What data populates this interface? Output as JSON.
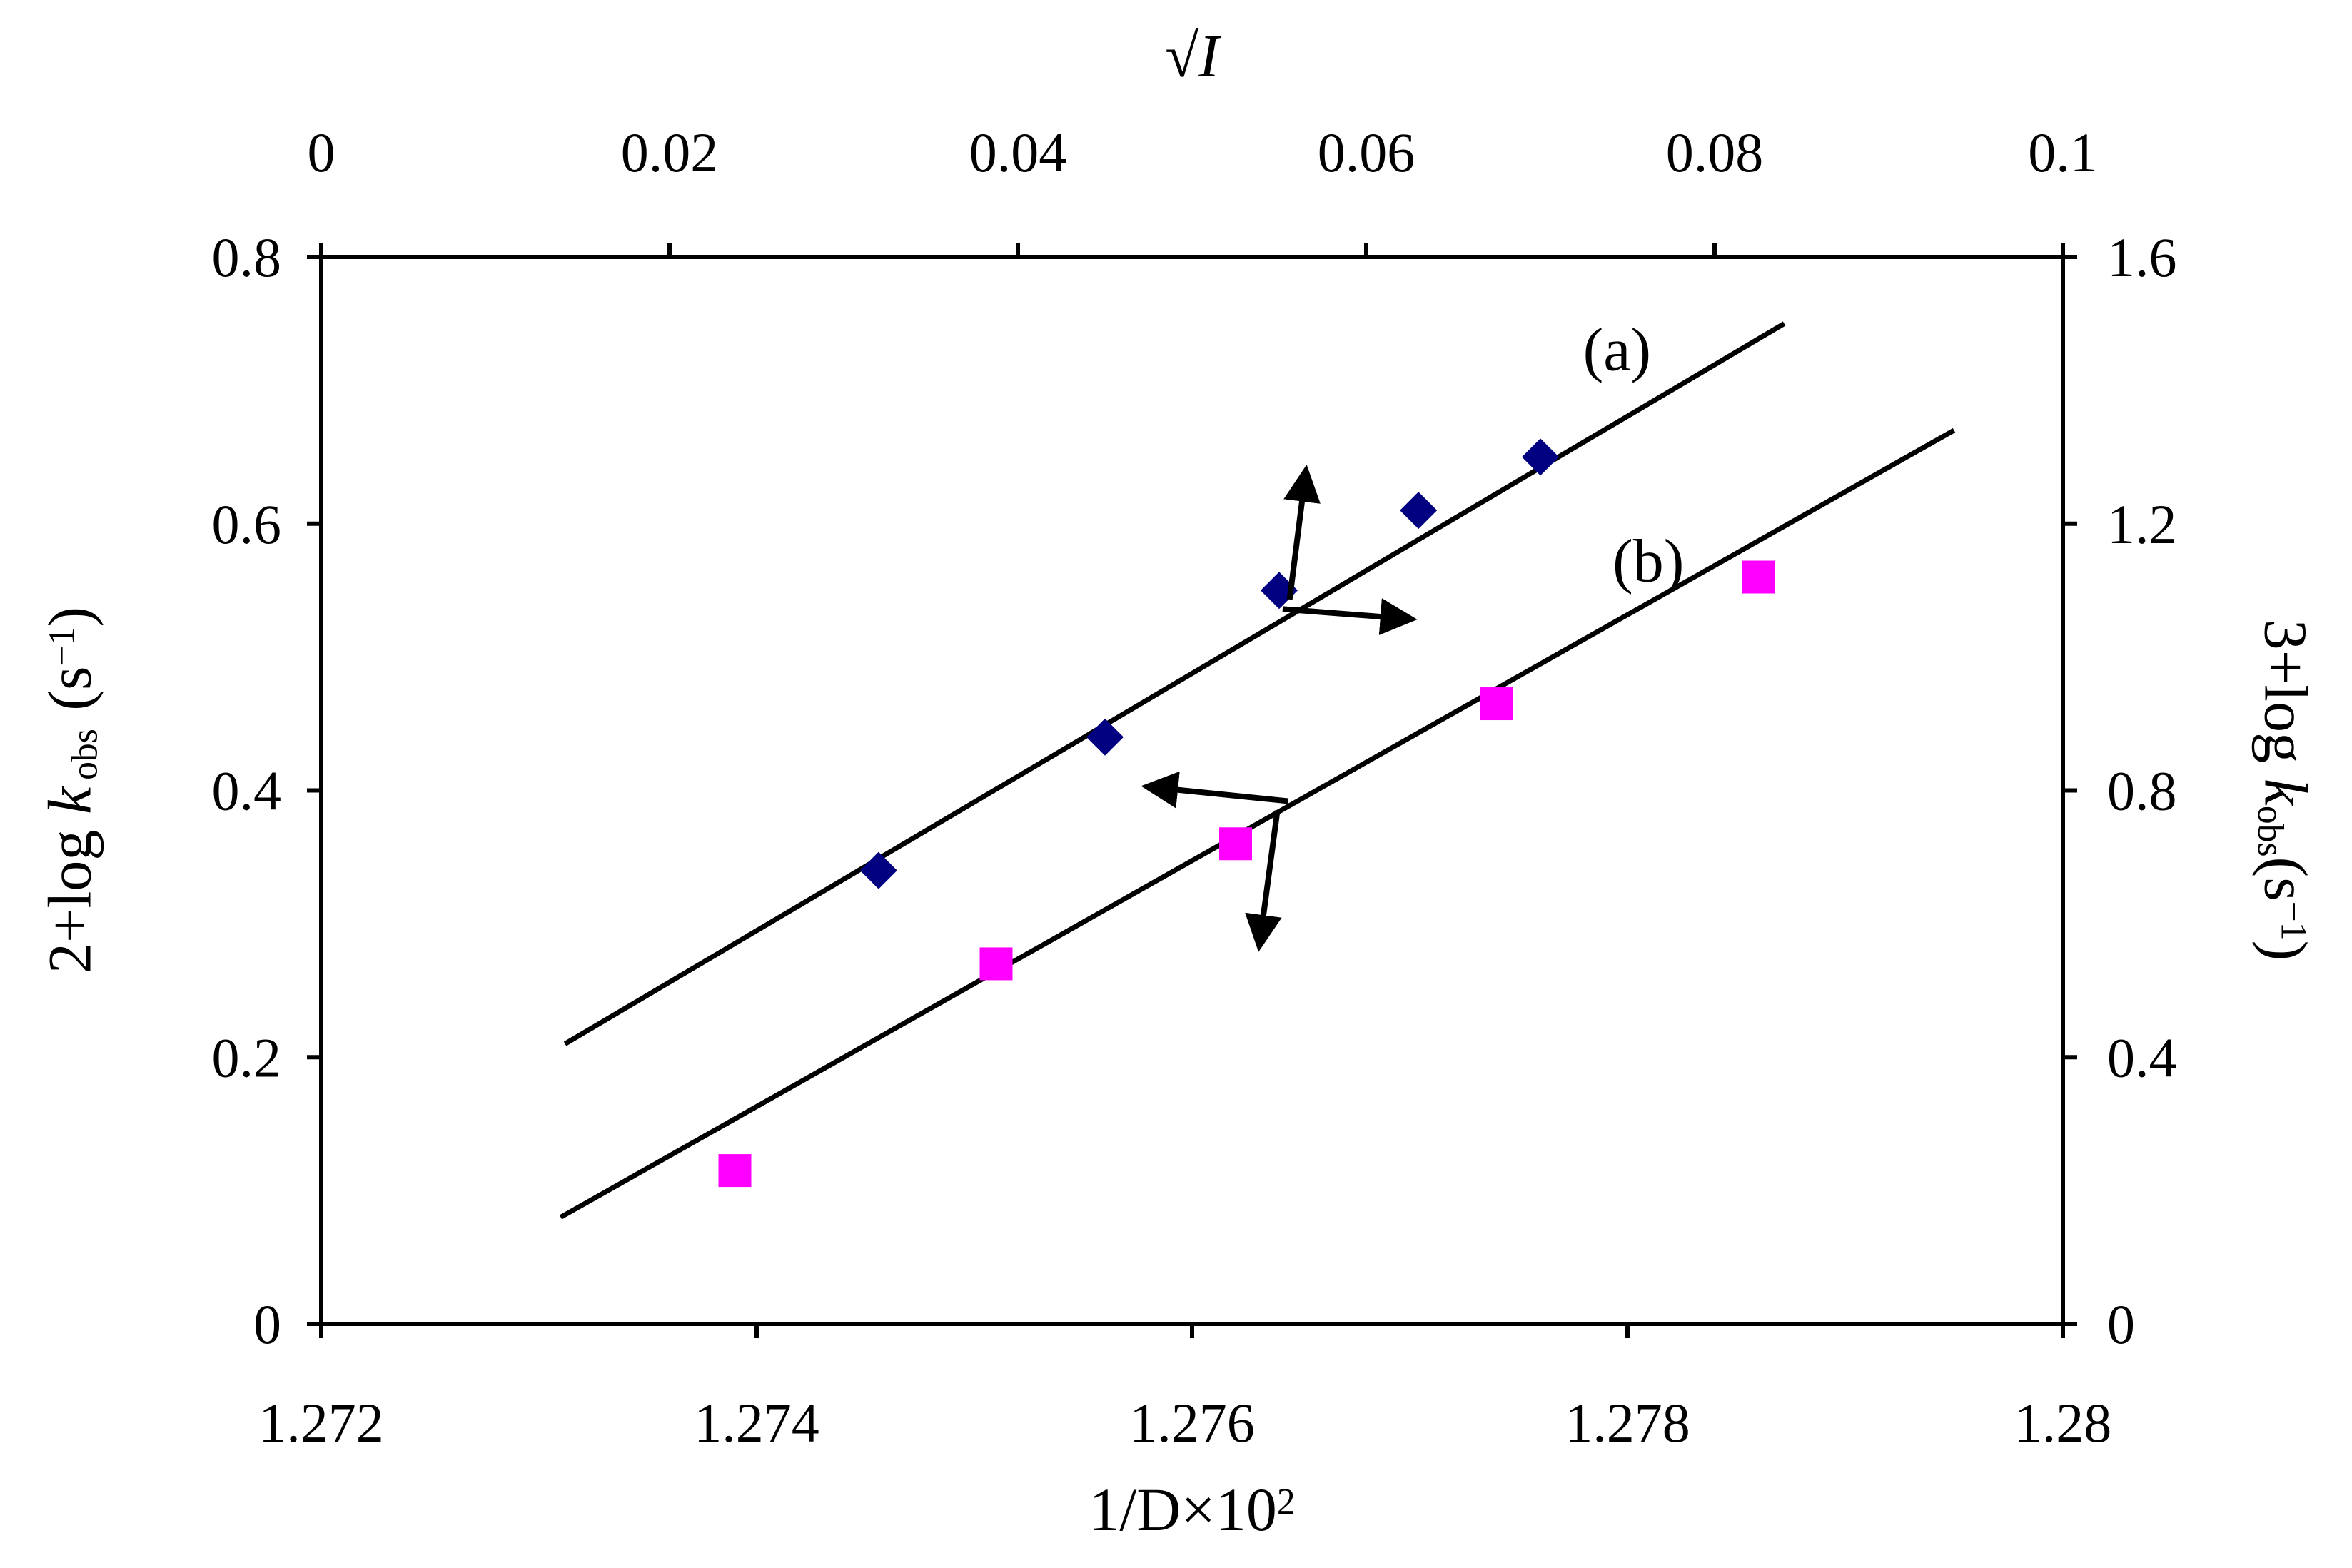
{
  "chart_data": {
    "type": "scatter",
    "title": "",
    "background": "#FFFFFF",
    "frame_color": "#000000",
    "line_color": "#000000",
    "grid": false,
    "legend": "none (series labeled inline as (a) and (b))",
    "axes": {
      "top": {
        "label": "√I",
        "label_parts": {
          "root": "√",
          "var": "I"
        },
        "min": 0,
        "max": 0.1,
        "ticks": [
          0,
          0.02,
          0.04,
          0.06,
          0.08,
          0.1
        ],
        "tick_labels": [
          "0",
          "0.02",
          "0.04",
          "0.06",
          "0.08",
          "0.1"
        ]
      },
      "bottom": {
        "label": "1/D×10²",
        "label_parts": {
          "base": "1/D×10",
          "sup": "2"
        },
        "min": 1.272,
        "max": 1.28,
        "ticks": [
          1.272,
          1.274,
          1.276,
          1.278,
          1.28
        ],
        "tick_labels": [
          "1.272",
          "1.274",
          "1.276",
          "1.278",
          "1.28"
        ]
      },
      "left": {
        "label": "2+log kobs (s−1)",
        "label_parts": {
          "pre": "2+log ",
          "kvar": "k",
          "sub": "obs",
          "mid": " (s",
          "sup": "−1",
          "post": ")"
        },
        "min": 0,
        "max": 0.8,
        "ticks": [
          0,
          0.2,
          0.4,
          0.6,
          0.8
        ],
        "tick_labels": [
          "0",
          "0.2",
          "0.4",
          "0.6",
          "0.8"
        ]
      },
      "right": {
        "label": "3+log kobs(s−1)",
        "label_parts": {
          "pre": "3+log ",
          "kvar": "k",
          "sub": "obs",
          "mid": "(s",
          "sup": "−1",
          "post": ")"
        },
        "min": 0,
        "max": 1.6,
        "ticks": [
          0,
          0.4,
          0.8,
          1.2,
          1.6
        ],
        "tick_labels": [
          "0",
          "0.4",
          "0.8",
          "1.2",
          "1.6"
        ]
      }
    },
    "series": [
      {
        "id": "a",
        "name": "(a)",
        "marker": "diamond",
        "color": "#000080",
        "x_axis": "top",
        "y_axis": "left",
        "points": [
          [
            0.032,
            0.34
          ],
          [
            0.045,
            0.44
          ],
          [
            0.055,
            0.55
          ],
          [
            0.063,
            0.61
          ],
          [
            0.07,
            0.65
          ]
        ],
        "fit_line": [
          [
            0.014,
            0.21
          ],
          [
            0.084,
            0.75
          ]
        ],
        "label_pos": {
          "fx": 0.744,
          "fy": 0.086
        }
      },
      {
        "id": "b",
        "name": "(b)",
        "marker": "square",
        "color": "#FF00FF",
        "x_axis": "bottom",
        "y_axis": "right",
        "points": [
          [
            1.2739,
            0.23
          ],
          [
            1.2751,
            0.54
          ],
          [
            1.2762,
            0.72
          ],
          [
            1.2774,
            0.93
          ],
          [
            1.2786,
            1.12
          ]
        ],
        "fit_line": [
          [
            1.2731,
            0.16
          ],
          [
            1.2795,
            1.34
          ]
        ],
        "label_pos": {
          "fx": 0.762,
          "fy": 0.284
        }
      }
    ],
    "arrows": [
      {
        "for_series": "a",
        "from": {
          "fx": 0.556,
          "fy": 0.321
        },
        "to": {
          "fx": 0.565,
          "fy": 0.205
        }
      },
      {
        "for_series": "a",
        "from": {
          "fx": 0.552,
          "fy": 0.33
        },
        "to": {
          "fx": 0.623,
          "fy": 0.339
        }
      },
      {
        "for_series": "b",
        "from": {
          "fx": 0.555,
          "fy": 0.51
        },
        "to": {
          "fx": 0.477,
          "fy": 0.497
        }
      },
      {
        "for_series": "b",
        "from": {
          "fx": 0.549,
          "fy": 0.519
        },
        "to": {
          "fx": 0.539,
          "fy": 0.641
        }
      }
    ]
  }
}
